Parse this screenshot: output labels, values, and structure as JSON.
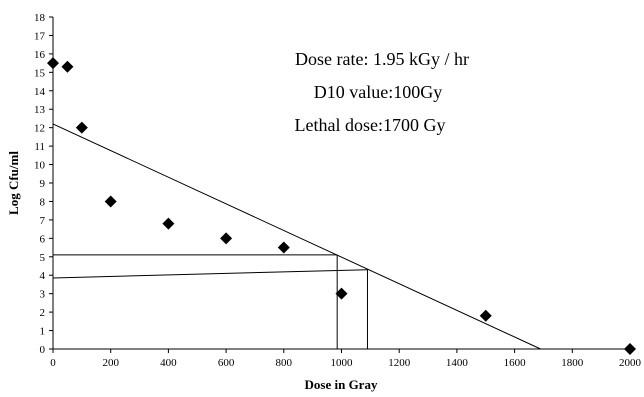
{
  "chart_data": {
    "type": "scatter",
    "xlabel": "Dose in Gray",
    "ylabel": "Log  Cfu/ml",
    "xlim": [
      0,
      2000
    ],
    "ylim": [
      0,
      18
    ],
    "x_ticks": [
      0,
      200,
      400,
      600,
      800,
      1000,
      1200,
      1400,
      1600,
      1800,
      2000
    ],
    "y_ticks": [
      0,
      1,
      2,
      3,
      4,
      5,
      6,
      7,
      8,
      9,
      10,
      11,
      12,
      13,
      14,
      15,
      16,
      17,
      18
    ],
    "marker": "diamond",
    "marker_color": "#000000",
    "points": [
      {
        "x": 0,
        "y": 15.5
      },
      {
        "x": 50,
        "y": 15.3
      },
      {
        "x": 100,
        "y": 12.0
      },
      {
        "x": 200,
        "y": 8.0
      },
      {
        "x": 400,
        "y": 6.8
      },
      {
        "x": 600,
        "y": 6.0
      },
      {
        "x": 800,
        "y": 5.5
      },
      {
        "x": 1000,
        "y": 3.0
      },
      {
        "x": 1500,
        "y": 1.8
      },
      {
        "x": 2000,
        "y": 0.0
      }
    ],
    "lines": [
      {
        "x1": 0,
        "y1": 12.2,
        "x2": 1690,
        "y2": 0
      },
      {
        "x1": 0,
        "y1": 5.1,
        "x2": 985,
        "y2": 5.1
      },
      {
        "x1": 985,
        "y1": 0,
        "x2": 985,
        "y2": 5.1
      },
      {
        "x1": 0,
        "y1": 3.85,
        "x2": 1090,
        "y2": 4.3
      },
      {
        "x1": 1090,
        "y1": 0,
        "x2": 1090,
        "y2": 4.3
      }
    ],
    "annotations": [
      "Dose rate: 1.95 kGy / hr",
      "D10 value:100Gy",
      "Lethal dose:1700 Gy"
    ]
  }
}
